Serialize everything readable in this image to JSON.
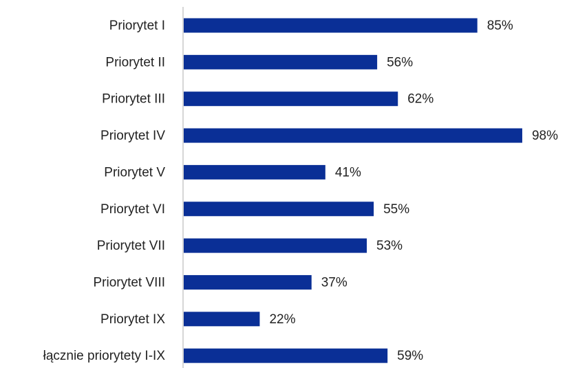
{
  "chart_data": {
    "type": "bar",
    "orientation": "horizontal",
    "categories": [
      "Priorytet I",
      "Priorytet II",
      "Priorytet III",
      "Priorytet IV",
      "Priorytet V",
      "Priorytet VI",
      "Priorytet VII",
      "Priorytet VIII",
      "Priorytet IX",
      "łącznie priorytety I-IX"
    ],
    "values": [
      85,
      56,
      62,
      98,
      41,
      55,
      53,
      37,
      22,
      59
    ],
    "value_labels": [
      "85%",
      "56%",
      "62%",
      "98%",
      "41%",
      "55%",
      "53%",
      "37%",
      "22%",
      "59%"
    ],
    "color": "#0a2f96",
    "xlim": [
      0,
      100
    ]
  }
}
